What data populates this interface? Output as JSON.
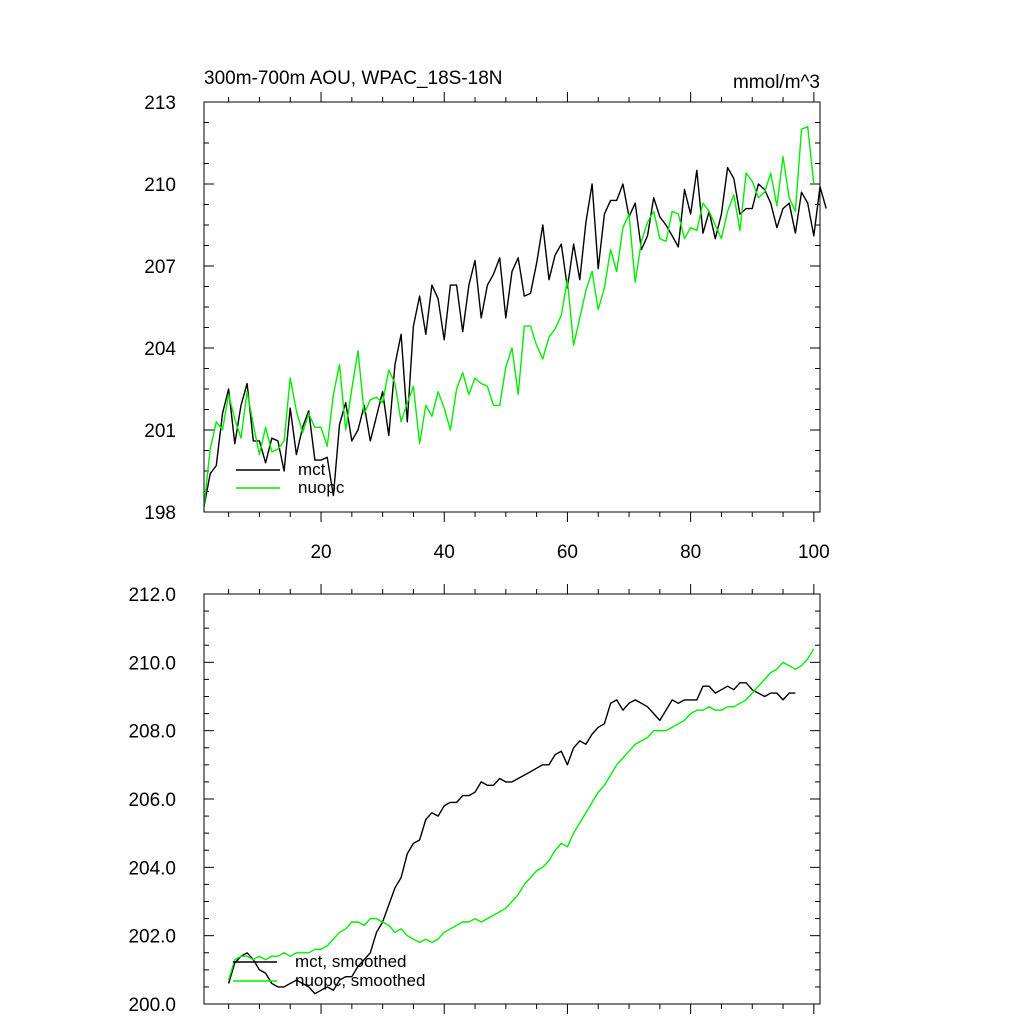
{
  "chart_data": [
    {
      "type": "line",
      "title": "300m-700m AOU, WPAC_18S-18N",
      "units": "mmol/m^3",
      "xlabel": "",
      "ylabel": "",
      "xlim": [
        1,
        101
      ],
      "ylim": [
        198,
        213
      ],
      "x_ticks": [
        20,
        40,
        60,
        80,
        100
      ],
      "x_tick_labels": [
        "20",
        "40",
        "60",
        "80",
        "100"
      ],
      "y_ticks": [
        198,
        201,
        204,
        207,
        210,
        213
      ],
      "y_tick_labels": [
        "198",
        "201",
        "204",
        "207",
        "210",
        "213"
      ],
      "legend_position": "bottom-left",
      "x_start": 1,
      "series": [
        {
          "name": "mct",
          "color": "#000000",
          "values": [
            198.2,
            199.4,
            199.7,
            201.6,
            202.5,
            200.5,
            201.9,
            202.7,
            200.6,
            200.6,
            199.8,
            200.7,
            200.6,
            199.5,
            201.8,
            200.1,
            201.1,
            201.7,
            199.9,
            199.9,
            200.0,
            198.6,
            201.2,
            202.0,
            200.6,
            201.0,
            201.9,
            200.6,
            201.5,
            202.4,
            200.8,
            203.4,
            204.5,
            201.3,
            204.8,
            205.9,
            204.5,
            206.3,
            205.8,
            204.3,
            206.3,
            206.3,
            204.6,
            206.3,
            207.2,
            205.1,
            206.3,
            206.7,
            207.3,
            205.1,
            206.8,
            207.3,
            205.9,
            206.0,
            207.1,
            208.5,
            206.5,
            207.4,
            207.8,
            206.2,
            207.8,
            206.5,
            208.6,
            210.0,
            206.9,
            208.9,
            209.4,
            209.4,
            210.0,
            208.8,
            209.3,
            207.6,
            208.1,
            209.5,
            208.8,
            208.5,
            208.1,
            207.7,
            209.8,
            208.9,
            210.5,
            208.2,
            209.0,
            208.0,
            208.9,
            210.6,
            210.2,
            208.9,
            209.1,
            209.1,
            210.0,
            209.8,
            209.3,
            208.4,
            209.1,
            209.3,
            208.2,
            209.7,
            209.3,
            208.1,
            209.9,
            209.1
          ]
        },
        {
          "name": "nuopc",
          "color": "#00ee00",
          "values": [
            198.2,
            200.3,
            201.3,
            201.0,
            202.3,
            201.4,
            200.7,
            202.4,
            201.2,
            200.1,
            201.1,
            200.2,
            200.3,
            200.6,
            202.9,
            201.7,
            200.9,
            201.6,
            201.1,
            201.1,
            200.4,
            202.3,
            203.4,
            201.0,
            202.5,
            203.9,
            201.6,
            202.1,
            202.2,
            202.0,
            203.2,
            202.7,
            201.3,
            202.0,
            202.6,
            200.5,
            201.9,
            201.5,
            202.4,
            201.8,
            201.0,
            202.5,
            203.1,
            202.3,
            202.9,
            202.7,
            202.6,
            201.9,
            201.9,
            203.3,
            204.0,
            202.3,
            204.8,
            204.8,
            204.1,
            203.6,
            204.4,
            204.7,
            205.2,
            206.5,
            204.1,
            205.1,
            206.1,
            206.8,
            205.4,
            206.2,
            207.6,
            206.8,
            208.4,
            208.9,
            206.4,
            207.9,
            208.6,
            209.0,
            208.0,
            207.9,
            209.0,
            208.9,
            208.0,
            208.4,
            208.3,
            209.3,
            209.0,
            208.5,
            208.0,
            209.0,
            209.6,
            208.3,
            210.4,
            210.1,
            209.5,
            209.7,
            210.4,
            209.2,
            211.0,
            209.5,
            209.0,
            212.0,
            212.1,
            210.0
          ]
        }
      ]
    },
    {
      "type": "line",
      "title": "",
      "xlabel": "",
      "ylabel": "",
      "xlim": [
        1,
        101
      ],
      "ylim": [
        200.0,
        212.0
      ],
      "x_ticks": [
        20,
        40,
        60,
        80,
        100
      ],
      "x_tick_labels": [],
      "y_ticks": [
        200.0,
        202.0,
        204.0,
        206.0,
        208.0,
        210.0,
        212.0
      ],
      "y_tick_labels": [
        "200.0",
        "202.0",
        "204.0",
        "206.0",
        "208.0",
        "210.0",
        "212.0"
      ],
      "legend_position": "bottom-left",
      "x_start": 5,
      "series": [
        {
          "name": "mct, smoothed",
          "color": "#000000",
          "values": [
            200.6,
            201.2,
            201.4,
            201.5,
            201.3,
            201.0,
            200.9,
            200.6,
            200.5,
            200.5,
            200.6,
            200.7,
            200.6,
            200.5,
            200.3,
            200.4,
            200.5,
            200.4,
            200.7,
            200.8,
            200.8,
            201.1,
            201.3,
            201.5,
            202.1,
            202.4,
            202.9,
            203.4,
            203.7,
            204.4,
            204.7,
            204.8,
            205.4,
            205.6,
            205.5,
            205.8,
            205.9,
            205.9,
            206.1,
            206.1,
            206.2,
            206.5,
            206.4,
            206.4,
            206.6,
            206.5,
            206.5,
            206.6,
            206.7,
            206.8,
            206.9,
            207.0,
            207.0,
            207.3,
            207.4,
            207.0,
            207.5,
            207.7,
            207.6,
            207.9,
            208.1,
            208.2,
            208.8,
            208.9,
            208.6,
            208.8,
            208.9,
            208.8,
            208.7,
            208.5,
            208.3,
            208.6,
            208.9,
            208.8,
            208.9,
            208.9,
            208.9,
            209.3,
            209.3,
            209.1,
            209.2,
            209.3,
            209.2,
            209.4,
            209.4,
            209.2,
            209.1,
            209.0,
            209.1,
            209.1,
            208.9,
            209.1,
            209.1
          ]
        },
        {
          "name": "nuopc, smoothed",
          "color": "#00ee00",
          "values": [
            200.7,
            201.3,
            201.4,
            201.4,
            201.3,
            201.4,
            201.3,
            201.4,
            201.4,
            201.5,
            201.4,
            201.5,
            201.5,
            201.5,
            201.6,
            201.6,
            201.7,
            201.9,
            202.1,
            202.2,
            202.4,
            202.4,
            202.3,
            202.5,
            202.5,
            202.4,
            202.3,
            202.1,
            202.2,
            202.0,
            201.9,
            201.8,
            201.9,
            201.8,
            201.9,
            202.1,
            202.2,
            202.3,
            202.4,
            202.4,
            202.5,
            202.4,
            202.5,
            202.6,
            202.7,
            202.8,
            203.0,
            203.2,
            203.5,
            203.7,
            203.9,
            204.0,
            204.2,
            204.5,
            204.7,
            204.6,
            205.0,
            205.3,
            205.6,
            205.9,
            206.2,
            206.4,
            206.7,
            207.0,
            207.2,
            207.4,
            207.6,
            207.7,
            207.8,
            208.0,
            208.0,
            208.0,
            208.1,
            208.2,
            208.3,
            208.5,
            208.6,
            208.6,
            208.7,
            208.6,
            208.6,
            208.7,
            208.7,
            208.8,
            208.9,
            209.1,
            209.3,
            209.5,
            209.7,
            209.8,
            210.0,
            209.9,
            209.8,
            209.9,
            210.1,
            210.4
          ]
        }
      ]
    }
  ]
}
